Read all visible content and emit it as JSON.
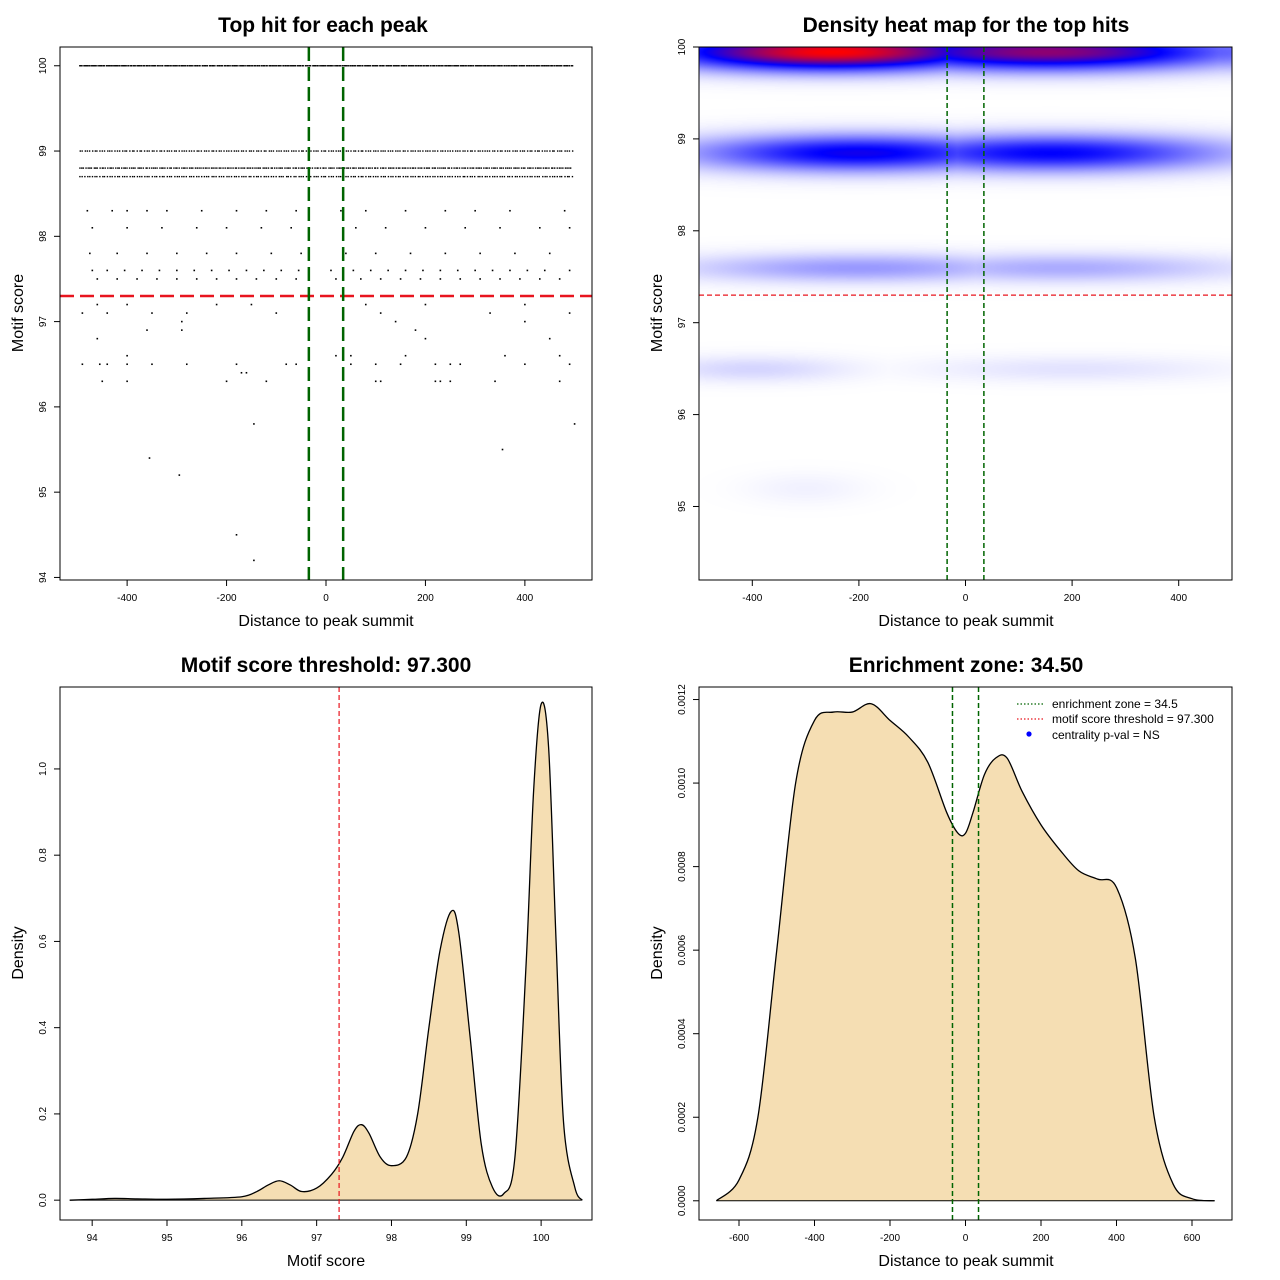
{
  "chart_data": [
    {
      "type": "scatter",
      "title": "Top hit for each peak",
      "xlabel": "Distance to peak summit",
      "ylabel": "Motif score",
      "xlim": [
        -535,
        535
      ],
      "ylim": [
        93.97,
        100.22
      ],
      "xticks": [
        "-400",
        "-200",
        "0",
        "200",
        "400"
      ],
      "xtick_values": [
        -400,
        -200,
        0,
        200,
        400
      ],
      "yticks": [
        "94",
        "95",
        "96",
        "97",
        "98",
        "99",
        "100"
      ],
      "ytick_values": [
        94,
        95,
        96,
        97,
        98,
        99,
        100
      ],
      "threshold_y": 97.3,
      "zone_x": [
        -34.5,
        34.5
      ],
      "threshold_color": "#e8141e",
      "zone_color": "#006400",
      "dense_rows": [
        {
          "y": 100,
          "step": 2.5
        },
        {
          "y": 99.0,
          "step": 5
        },
        {
          "y": 98.8,
          "step": 4
        },
        {
          "y": 98.7,
          "step": 5
        }
      ],
      "sparse_points": [
        {
          "x": -480,
          "y": 98.3
        },
        {
          "x": -430,
          "y": 98.3
        },
        {
          "x": -400,
          "y": 98.3
        },
        {
          "x": -360,
          "y": 98.3
        },
        {
          "x": -320,
          "y": 98.3
        },
        {
          "x": -250,
          "y": 98.3
        },
        {
          "x": -180,
          "y": 98.3
        },
        {
          "x": -120,
          "y": 98.3
        },
        {
          "x": -60,
          "y": 98.3
        },
        {
          "x": 30,
          "y": 98.3
        },
        {
          "x": 80,
          "y": 98.3
        },
        {
          "x": 160,
          "y": 98.3
        },
        {
          "x": 240,
          "y": 98.3
        },
        {
          "x": 300,
          "y": 98.3
        },
        {
          "x": 370,
          "y": 98.3
        },
        {
          "x": 480,
          "y": 98.3
        },
        {
          "x": -470,
          "y": 98.1
        },
        {
          "x": -400,
          "y": 98.1
        },
        {
          "x": -330,
          "y": 98.1
        },
        {
          "x": -260,
          "y": 98.1
        },
        {
          "x": -200,
          "y": 98.1
        },
        {
          "x": -130,
          "y": 98.1
        },
        {
          "x": -70,
          "y": 98.1
        },
        {
          "x": 60,
          "y": 98.1
        },
        {
          "x": 120,
          "y": 98.1
        },
        {
          "x": 200,
          "y": 98.1
        },
        {
          "x": 280,
          "y": 98.1
        },
        {
          "x": 350,
          "y": 98.1
        },
        {
          "x": 430,
          "y": 98.1
        },
        {
          "x": 490,
          "y": 98.1
        },
        {
          "x": -475,
          "y": 97.8
        },
        {
          "x": -420,
          "y": 97.8
        },
        {
          "x": -360,
          "y": 97.8
        },
        {
          "x": -300,
          "y": 97.8
        },
        {
          "x": -240,
          "y": 97.8
        },
        {
          "x": -180,
          "y": 97.8
        },
        {
          "x": -110,
          "y": 97.8
        },
        {
          "x": -50,
          "y": 97.8
        },
        {
          "x": 40,
          "y": 97.8
        },
        {
          "x": 100,
          "y": 97.8
        },
        {
          "x": 170,
          "y": 97.8
        },
        {
          "x": 240,
          "y": 97.8
        },
        {
          "x": 310,
          "y": 97.8
        },
        {
          "x": 380,
          "y": 97.8
        },
        {
          "x": 450,
          "y": 97.8
        },
        {
          "x": -470,
          "y": 97.6
        },
        {
          "x": -440,
          "y": 97.6
        },
        {
          "x": -405,
          "y": 97.6
        },
        {
          "x": -370,
          "y": 97.6
        },
        {
          "x": -335,
          "y": 97.6
        },
        {
          "x": -300,
          "y": 97.6
        },
        {
          "x": -265,
          "y": 97.6
        },
        {
          "x": -230,
          "y": 97.6
        },
        {
          "x": -195,
          "y": 97.6
        },
        {
          "x": -160,
          "y": 97.6
        },
        {
          "x": -125,
          "y": 97.6
        },
        {
          "x": -90,
          "y": 97.6
        },
        {
          "x": -55,
          "y": 97.6
        },
        {
          "x": 10,
          "y": 97.6
        },
        {
          "x": 55,
          "y": 97.6
        },
        {
          "x": 90,
          "y": 97.6
        },
        {
          "x": 125,
          "y": 97.6
        },
        {
          "x": 160,
          "y": 97.6
        },
        {
          "x": 195,
          "y": 97.6
        },
        {
          "x": 230,
          "y": 97.6
        },
        {
          "x": 265,
          "y": 97.6
        },
        {
          "x": 300,
          "y": 97.6
        },
        {
          "x": 335,
          "y": 97.6
        },
        {
          "x": 370,
          "y": 97.6
        },
        {
          "x": 405,
          "y": 97.6
        },
        {
          "x": 440,
          "y": 97.6
        },
        {
          "x": 490,
          "y": 97.6
        },
        {
          "x": -460,
          "y": 97.5
        },
        {
          "x": -420,
          "y": 97.5
        },
        {
          "x": -380,
          "y": 97.5
        },
        {
          "x": -340,
          "y": 97.5
        },
        {
          "x": -300,
          "y": 97.5
        },
        {
          "x": -260,
          "y": 97.5
        },
        {
          "x": -220,
          "y": 97.5
        },
        {
          "x": -180,
          "y": 97.5
        },
        {
          "x": -140,
          "y": 97.5
        },
        {
          "x": -100,
          "y": 97.5
        },
        {
          "x": -60,
          "y": 97.5
        },
        {
          "x": 20,
          "y": 97.5
        },
        {
          "x": 70,
          "y": 97.5
        },
        {
          "x": 110,
          "y": 97.5
        },
        {
          "x": 150,
          "y": 97.5
        },
        {
          "x": 190,
          "y": 97.5
        },
        {
          "x": 230,
          "y": 97.5
        },
        {
          "x": 270,
          "y": 97.5
        },
        {
          "x": 310,
          "y": 97.5
        },
        {
          "x": 350,
          "y": 97.5
        },
        {
          "x": 390,
          "y": 97.5
        },
        {
          "x": 430,
          "y": 97.5
        },
        {
          "x": 470,
          "y": 97.5
        },
        {
          "x": -460,
          "y": 97.2
        },
        {
          "x": -400,
          "y": 97.2
        },
        {
          "x": -220,
          "y": 97.2
        },
        {
          "x": -150,
          "y": 97.2
        },
        {
          "x": 80,
          "y": 97.2
        },
        {
          "x": 200,
          "y": 97.2
        },
        {
          "x": 400,
          "y": 97.2
        },
        {
          "x": -490,
          "y": 97.1
        },
        {
          "x": -440,
          "y": 97.1
        },
        {
          "x": -350,
          "y": 97.1
        },
        {
          "x": -280,
          "y": 97.1
        },
        {
          "x": -100,
          "y": 97.1
        },
        {
          "x": 110,
          "y": 97.1
        },
        {
          "x": 330,
          "y": 97.1
        },
        {
          "x": 490,
          "y": 97.1
        },
        {
          "x": -290,
          "y": 97.0
        },
        {
          "x": 140,
          "y": 97.0
        },
        {
          "x": 400,
          "y": 97.0
        },
        {
          "x": -360,
          "y": 96.9
        },
        {
          "x": -290,
          "y": 96.9
        },
        {
          "x": 180,
          "y": 96.9
        },
        {
          "x": -460,
          "y": 96.8
        },
        {
          "x": 200,
          "y": 96.8
        },
        {
          "x": 450,
          "y": 96.8
        },
        {
          "x": -400,
          "y": 96.6
        },
        {
          "x": 20,
          "y": 96.6
        },
        {
          "x": 50,
          "y": 96.6
        },
        {
          "x": 160,
          "y": 96.6
        },
        {
          "x": 360,
          "y": 96.6
        },
        {
          "x": 470,
          "y": 96.6
        },
        {
          "x": -490,
          "y": 96.5
        },
        {
          "x": -455,
          "y": 96.5
        },
        {
          "x": -440,
          "y": 96.5
        },
        {
          "x": -400,
          "y": 96.5
        },
        {
          "x": -350,
          "y": 96.5
        },
        {
          "x": -280,
          "y": 96.5
        },
        {
          "x": -180,
          "y": 96.5
        },
        {
          "x": -80,
          "y": 96.5
        },
        {
          "x": -60,
          "y": 96.5
        },
        {
          "x": 50,
          "y": 96.5
        },
        {
          "x": 100,
          "y": 96.5
        },
        {
          "x": 150,
          "y": 96.5
        },
        {
          "x": 220,
          "y": 96.5
        },
        {
          "x": 250,
          "y": 96.5
        },
        {
          "x": 270,
          "y": 96.5
        },
        {
          "x": 400,
          "y": 96.5
        },
        {
          "x": 490,
          "y": 96.5
        },
        {
          "x": -170,
          "y": 96.4
        },
        {
          "x": -160,
          "y": 96.4
        },
        {
          "x": -450,
          "y": 96.3
        },
        {
          "x": -400,
          "y": 96.3
        },
        {
          "x": -200,
          "y": 96.3
        },
        {
          "x": -120,
          "y": 96.3
        },
        {
          "x": 100,
          "y": 96.3
        },
        {
          "x": 110,
          "y": 96.3
        },
        {
          "x": 220,
          "y": 96.3
        },
        {
          "x": 230,
          "y": 96.3
        },
        {
          "x": 250,
          "y": 96.3
        },
        {
          "x": 340,
          "y": 96.3
        },
        {
          "x": 470,
          "y": 96.3
        },
        {
          "x": -145,
          "y": 95.8
        },
        {
          "x": 500,
          "y": 95.8
        },
        {
          "x": -355,
          "y": 95.4
        },
        {
          "x": 355,
          "y": 95.5
        },
        {
          "x": -295,
          "y": 95.2
        },
        {
          "x": -180,
          "y": 94.5
        },
        {
          "x": -145,
          "y": 94.2
        }
      ]
    },
    {
      "type": "heatmap",
      "title": "Density heat map for the top hits",
      "xlabel": "Distance to peak summit",
      "ylabel": "Motif score",
      "xlim": [
        -500,
        500
      ],
      "ylim": [
        94.2,
        100.0
      ],
      "xticks": [
        "-400",
        "-200",
        "0",
        "200",
        "400"
      ],
      "xtick_values": [
        -400,
        -200,
        0,
        200,
        400
      ],
      "yticks": [
        "95",
        "96",
        "97",
        "98",
        "99",
        "100"
      ],
      "ytick_values": [
        95,
        96,
        97,
        98,
        99,
        100
      ],
      "threshold_y": 97.3,
      "zone_x": [
        -34.5,
        34.5
      ],
      "threshold_color": "#e8141e",
      "zone_color": "#006400",
      "high_color": "#ff0000",
      "mid_color": "#0000ff",
      "low_color": "#ffffff",
      "bands": [
        {
          "y": 99.95,
          "sy": 0.14,
          "peaks": [
            {
              "x": -250,
              "s": 220,
              "w": 1.0
            },
            {
              "x": 150,
              "s": 250,
              "w": 0.8
            },
            {
              "x": 450,
              "s": 150,
              "w": 0.35
            }
          ]
        },
        {
          "y": 98.85,
          "sy": 0.14,
          "peaks": [
            {
              "x": -200,
              "s": 220,
              "w": 0.58
            },
            {
              "x": 160,
              "s": 230,
              "w": 0.55
            }
          ]
        },
        {
          "y": 97.6,
          "sy": 0.11,
          "peaks": [
            {
              "x": -200,
              "s": 230,
              "w": 0.22
            },
            {
              "x": 180,
              "s": 230,
              "w": 0.18
            }
          ]
        },
        {
          "y": 96.5,
          "sy": 0.1,
          "peaks": [
            {
              "x": -400,
              "s": 130,
              "w": 0.09
            },
            {
              "x": 200,
              "s": 200,
              "w": 0.06
            }
          ]
        },
        {
          "y": 95.2,
          "sy": 0.12,
          "peaks": [
            {
              "x": -300,
              "s": 80,
              "w": 0.03
            }
          ]
        }
      ]
    },
    {
      "type": "area",
      "title": "Motif score threshold: 97.300",
      "xlabel": "Motif score",
      "ylabel": "Density",
      "xlim": [
        93.57,
        100.68
      ],
      "ylim": [
        -0.046,
        1.19
      ],
      "xticks": [
        "94",
        "95",
        "96",
        "97",
        "98",
        "99",
        "100"
      ],
      "xtick_values": [
        94,
        95,
        96,
        97,
        98,
        99,
        100
      ],
      "yticks": [
        "0.0",
        "0.2",
        "0.4",
        "0.6",
        "0.8",
        "1.0"
      ],
      "ytick_values": [
        0,
        0.2,
        0.4,
        0.6,
        0.8,
        1.0
      ],
      "threshold_x": 97.3,
      "threshold_color": "#e8141e",
      "fill_color": "#f5deb3",
      "x": [
        93.7,
        94.0,
        94.3,
        94.6,
        95.0,
        95.5,
        96.0,
        96.2,
        96.35,
        96.5,
        96.65,
        96.8,
        97.0,
        97.2,
        97.35,
        97.5,
        97.6,
        97.7,
        97.85,
        98.0,
        98.2,
        98.35,
        98.5,
        98.65,
        98.8,
        98.9,
        99.05,
        99.2,
        99.35,
        99.5,
        99.65,
        99.8,
        99.9,
        100.0,
        100.1,
        100.2,
        100.3,
        100.45,
        100.55
      ],
      "y": [
        0.0,
        0.002,
        0.004,
        0.003,
        0.002,
        0.004,
        0.008,
        0.02,
        0.035,
        0.045,
        0.035,
        0.02,
        0.028,
        0.06,
        0.1,
        0.16,
        0.175,
        0.155,
        0.1,
        0.08,
        0.1,
        0.2,
        0.4,
        0.58,
        0.67,
        0.62,
        0.38,
        0.13,
        0.03,
        0.015,
        0.1,
        0.55,
        0.95,
        1.15,
        1.05,
        0.6,
        0.18,
        0.03,
        0.0
      ]
    },
    {
      "type": "area",
      "title": "Enrichment zone: 34.50",
      "xlabel": "Distance to peak summit",
      "ylabel": "Density",
      "xlim": [
        -706,
        706
      ],
      "ylim": [
        -4.6e-05,
        0.00123
      ],
      "xticks": [
        "-600",
        "-400",
        "-200",
        "0",
        "200",
        "400",
        "600"
      ],
      "xtick_values": [
        -600,
        -400,
        -200,
        0,
        200,
        400,
        600
      ],
      "yticks": [
        "0.0000",
        "0.0002",
        "0.0004",
        "0.0006",
        "0.0008",
        "0.0010",
        "0.0012"
      ],
      "ytick_values": [
        0,
        0.0002,
        0.0004,
        0.0006,
        0.0008,
        0.001,
        0.0012
      ],
      "zone_x": [
        -34.5,
        34.5
      ],
      "zone_color": "#006400",
      "fill_color": "#f5deb3",
      "x": [
        -660,
        -600,
        -550,
        -500,
        -450,
        -400,
        -350,
        -300,
        -250,
        -200,
        -150,
        -100,
        -50,
        -20,
        0,
        20,
        50,
        80,
        110,
        150,
        200,
        250,
        300,
        350,
        400,
        450,
        500,
        550,
        600,
        660
      ],
      "y": [
        0.0,
        5e-05,
        0.0002,
        0.0006,
        0.001,
        0.00115,
        0.00117,
        0.00117,
        0.00119,
        0.00115,
        0.00111,
        0.00105,
        0.00093,
        0.00088,
        0.00088,
        0.00093,
        0.00102,
        0.00106,
        0.00106,
        0.00098,
        0.0009,
        0.00084,
        0.00079,
        0.00077,
        0.00075,
        0.00058,
        0.0002,
        4e-05,
        5e-06,
        0.0
      ],
      "legend": [
        {
          "label": "enrichment zone = 34.5",
          "kind": "dotted-line",
          "color": "#006400"
        },
        {
          "label": "motif score threshold = 97.300",
          "kind": "dotted-line",
          "color": "#e8141e"
        },
        {
          "label": "centrality p-val = NS",
          "kind": "dot",
          "color": "#0000ff"
        }
      ]
    }
  ]
}
